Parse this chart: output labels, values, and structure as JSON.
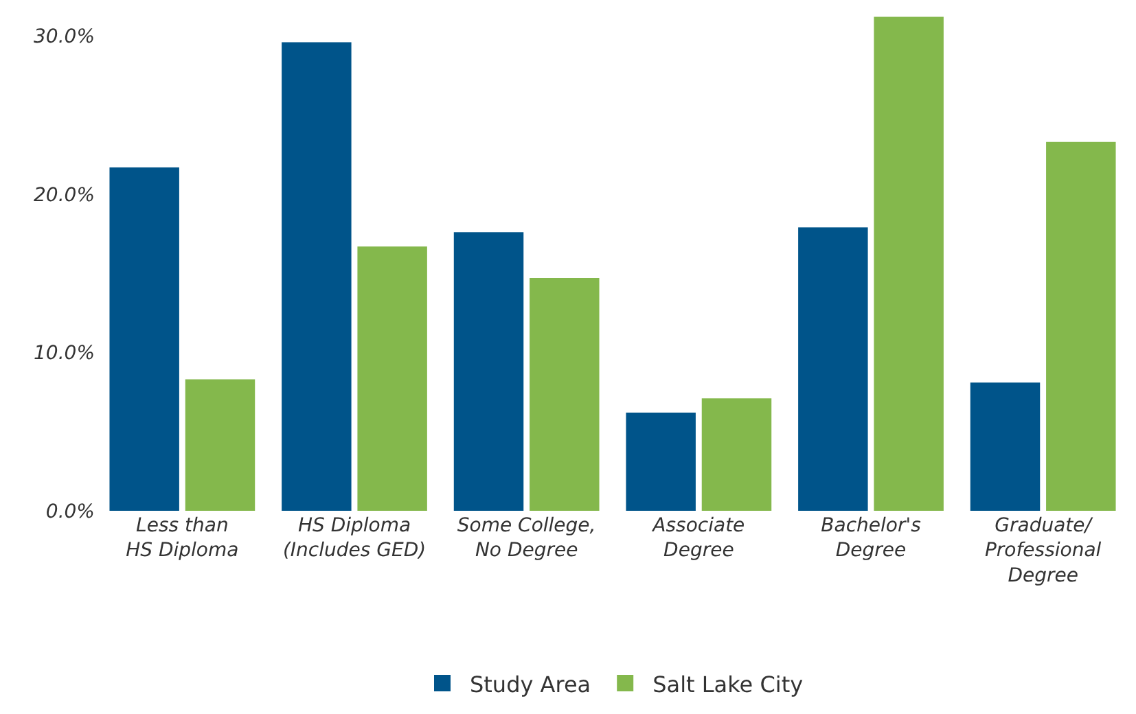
{
  "chart_data": {
    "type": "bar",
    "categories": [
      "Less than\nHS Diploma",
      "HS Diploma\n(Includes GED)",
      "Some College,\nNo Degree",
      "Associate\nDegree",
      "Bachelor's\nDegree",
      "Graduate/\nProfessional\nDegree"
    ],
    "series": [
      {
        "name": "Study Area",
        "color": "#00548a",
        "values": [
          21.7,
          29.6,
          17.6,
          6.2,
          17.9,
          8.1
        ]
      },
      {
        "name": "Salt Lake City",
        "color": "#84b84c",
        "values": [
          8.3,
          16.7,
          14.7,
          7.1,
          31.2,
          23.3
        ]
      }
    ],
    "ylim": [
      0,
      31.4
    ],
    "yticks": [
      {
        "value": 0,
        "label": "0.0%"
      },
      {
        "value": 10,
        "label": "10.0%"
      },
      {
        "value": 20,
        "label": "20.0%"
      },
      {
        "value": 30,
        "label": "30.0%"
      }
    ],
    "legend": "bottom"
  }
}
